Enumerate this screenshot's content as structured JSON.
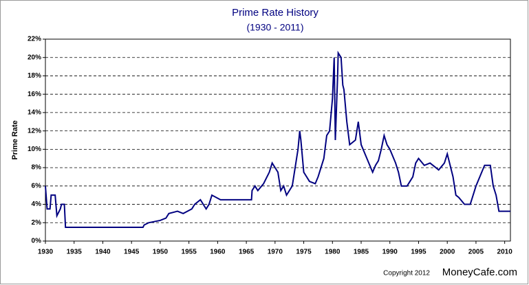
{
  "chart_data": {
    "type": "line",
    "title": "Prime Rate History",
    "subtitle": "(1930 - 2011)",
    "y_label": "Prime Rate",
    "copyright": "Copyright 2012",
    "brand": "MoneyCafe.com",
    "color": "#000080",
    "grid": true,
    "xlim": [
      1930,
      2011
    ],
    "xticks": [
      1930,
      1935,
      1940,
      1945,
      1950,
      1955,
      1960,
      1965,
      1970,
      1975,
      1980,
      1985,
      1990,
      1995,
      2000,
      2005,
      2010
    ],
    "ylim": [
      0,
      22
    ],
    "yticks": [
      {
        "value": 0,
        "label": "0%"
      },
      {
        "value": 2,
        "label": "2%"
      },
      {
        "value": 4,
        "label": "4%"
      },
      {
        "value": 6,
        "label": "6%"
      },
      {
        "value": 8,
        "label": "8%"
      },
      {
        "value": 10,
        "label": "10%"
      },
      {
        "value": 12,
        "label": "12%"
      },
      {
        "value": 14,
        "label": "14%"
      },
      {
        "value": 16,
        "label": "16%"
      },
      {
        "value": 18,
        "label": "18%"
      },
      {
        "value": 20,
        "label": "20%"
      },
      {
        "value": 22,
        "label": "22%"
      }
    ],
    "x": [
      1930,
      1930.3,
      1930.8,
      1931,
      1931.7,
      1932,
      1932.6,
      1932.8,
      1933.3,
      1933.5,
      1947,
      1947.2,
      1948,
      1950,
      1951,
      1951.5,
      1953,
      1954,
      1955.5,
      1956,
      1957,
      1958,
      1958.5,
      1959,
      1960.5,
      1965.9,
      1966,
      1966.5,
      1967,
      1968,
      1969,
      1969.5,
      1970.5,
      1971,
      1971.5,
      1972,
      1972.5,
      1973,
      1973.5,
      1974,
      1974.3,
      1974.5,
      1975,
      1975.5,
      1976,
      1977,
      1977.5,
      1978,
      1978.5,
      1979,
      1979.5,
      1980,
      1980.3,
      1980.5,
      1980.9,
      1981,
      1981.5,
      1981.8,
      1982,
      1982.5,
      1983,
      1984,
      1984.5,
      1985,
      1986,
      1987,
      1987.5,
      1988,
      1988.5,
      1989,
      1989.5,
      1990,
      1991,
      1991.5,
      1992,
      1993,
      1994,
      1994.5,
      1995,
      1996,
      1997,
      1998.5,
      1999.5,
      2000,
      2001,
      2001.5,
      2002,
      2003,
      2004,
      2004.5,
      2005,
      2006,
      2006.5,
      2007.5,
      2008,
      2008.5,
      2009,
      2011
    ],
    "values": [
      6,
      3.5,
      3.5,
      5,
      5,
      2.75,
      3.5,
      4,
      4,
      1.5,
      1.5,
      1.75,
      2,
      2.25,
      2.5,
      3,
      3.25,
      3,
      3.5,
      4,
      4.5,
      3.5,
      4,
      5,
      4.5,
      4.5,
      5.5,
      6,
      5.5,
      6.25,
      7.5,
      8.5,
      7.5,
      5.5,
      6,
      5,
      5.5,
      6,
      8,
      10,
      12,
      11,
      7.5,
      7,
      6.5,
      6.25,
      7,
      8,
      9,
      11.5,
      12,
      15.5,
      20,
      11,
      18,
      20.5,
      20,
      17,
      16.5,
      13,
      10.5,
      11,
      13,
      10.5,
      9,
      7.5,
      8.25,
      8.75,
      10,
      11.5,
      10.5,
      10,
      8.5,
      7.5,
      6,
      6,
      7,
      8.5,
      9,
      8.25,
      8.5,
      7.75,
      8.5,
      9.5,
      7,
      5,
      4.75,
      4,
      4,
      5,
      6,
      7.5,
      8.25,
      8.25,
      6,
      5,
      3.25,
      3.25
    ]
  }
}
